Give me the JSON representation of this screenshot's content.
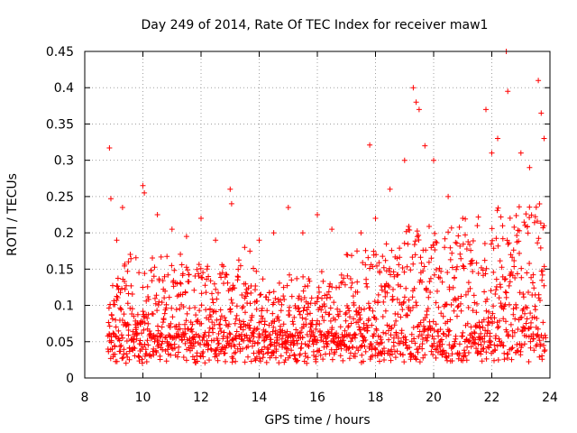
{
  "chart_data": {
    "type": "scatter",
    "title": "Day 249 of 2014, Rate Of TEC Index for receiver maw1",
    "xlabel": "GPS time / hours",
    "ylabel": "ROTI / TECUs",
    "xlim": [
      8,
      24
    ],
    "ylim": [
      0,
      0.45
    ],
    "xticks": [
      8,
      10,
      12,
      14,
      16,
      18,
      20,
      22,
      24
    ],
    "yticks": [
      0,
      0.05,
      0.1,
      0.15,
      0.2,
      0.25,
      0.3,
      0.35,
      0.4,
      0.45
    ],
    "xtick_labels": [
      "8",
      "10",
      "12",
      "14",
      "16",
      "18",
      "20",
      "22",
      "24"
    ],
    "ytick_labels": [
      "0",
      "0.05",
      "0.1",
      "0.15",
      "0.2",
      "0.25",
      "0.3",
      "0.35",
      "0.4",
      "0.45"
    ],
    "grid": true,
    "marker": "+",
    "color": "#ff0000",
    "data_range_x": [
      8.8,
      23.85
    ],
    "series": [
      {
        "name": "ROTI",
        "x": [
          8.85,
          8.9,
          9.1,
          9.3,
          9.5,
          10.0,
          10.05,
          10.5,
          11.0,
          11.5,
          12.0,
          12.5,
          13.0,
          13.05,
          13.5,
          14.0,
          14.5,
          15.0,
          15.5,
          16.0,
          16.5,
          17.0,
          17.5,
          17.8,
          18.0,
          18.5,
          19.0,
          19.3,
          19.4,
          19.5,
          19.7,
          20.0,
          20.5,
          21.0,
          21.5,
          21.8,
          22.0,
          22.2,
          22.5,
          22.55,
          23.0,
          23.3,
          23.6,
          23.7,
          23.8
        ],
        "y": [
          0.317,
          0.247,
          0.19,
          0.235,
          0.16,
          0.265,
          0.255,
          0.225,
          0.205,
          0.195,
          0.22,
          0.19,
          0.26,
          0.24,
          0.18,
          0.19,
          0.2,
          0.235,
          0.2,
          0.225,
          0.205,
          0.17,
          0.2,
          0.321,
          0.22,
          0.26,
          0.3,
          0.4,
          0.38,
          0.37,
          0.32,
          0.3,
          0.25,
          0.22,
          0.21,
          0.37,
          0.31,
          0.33,
          0.45,
          0.395,
          0.31,
          0.29,
          0.41,
          0.365,
          0.33
        ]
      }
    ]
  }
}
